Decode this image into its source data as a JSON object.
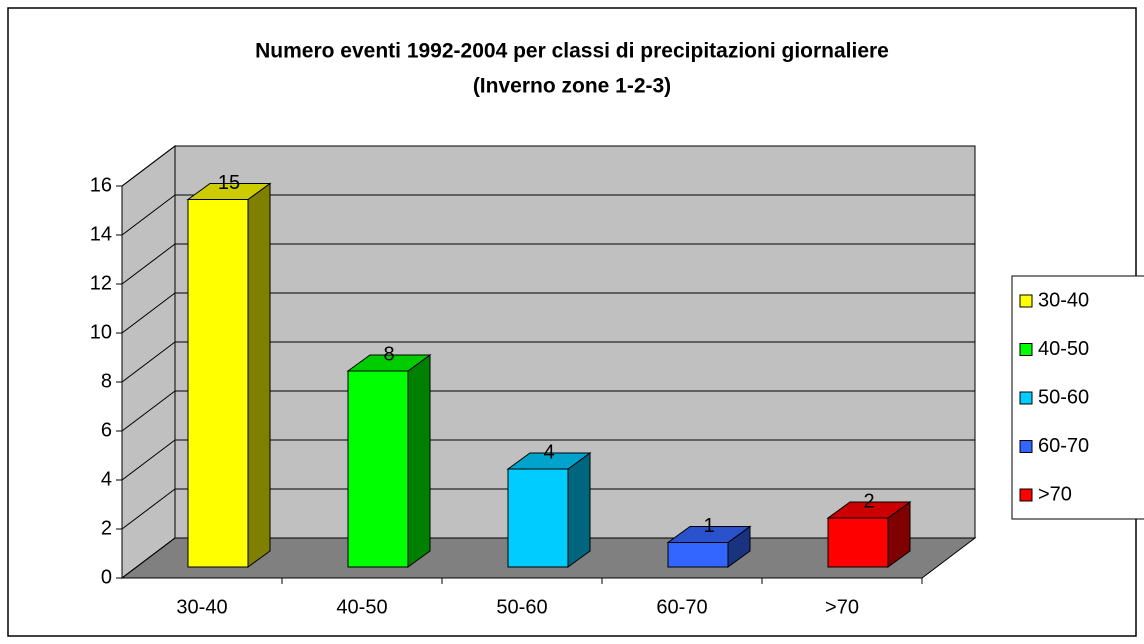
{
  "chart_data": {
    "type": "bar3d",
    "title": "Numero eventi 1992-2004 per classi di precipitazioni giornaliere",
    "subtitle": "(Inverno zone 1-2-3)",
    "categories": [
      "30-40",
      "40-50",
      "50-60",
      "60-70",
      ">70"
    ],
    "values": [
      15,
      8,
      4,
      1,
      2
    ],
    "colors": [
      "#ffff00",
      "#00ff00",
      "#00ccff",
      "#3366ff",
      "#ff0000"
    ],
    "ylim": [
      0,
      16
    ],
    "yticks": [
      0,
      2,
      4,
      6,
      8,
      10,
      12,
      14,
      16
    ],
    "grid": true,
    "legend": "right"
  }
}
